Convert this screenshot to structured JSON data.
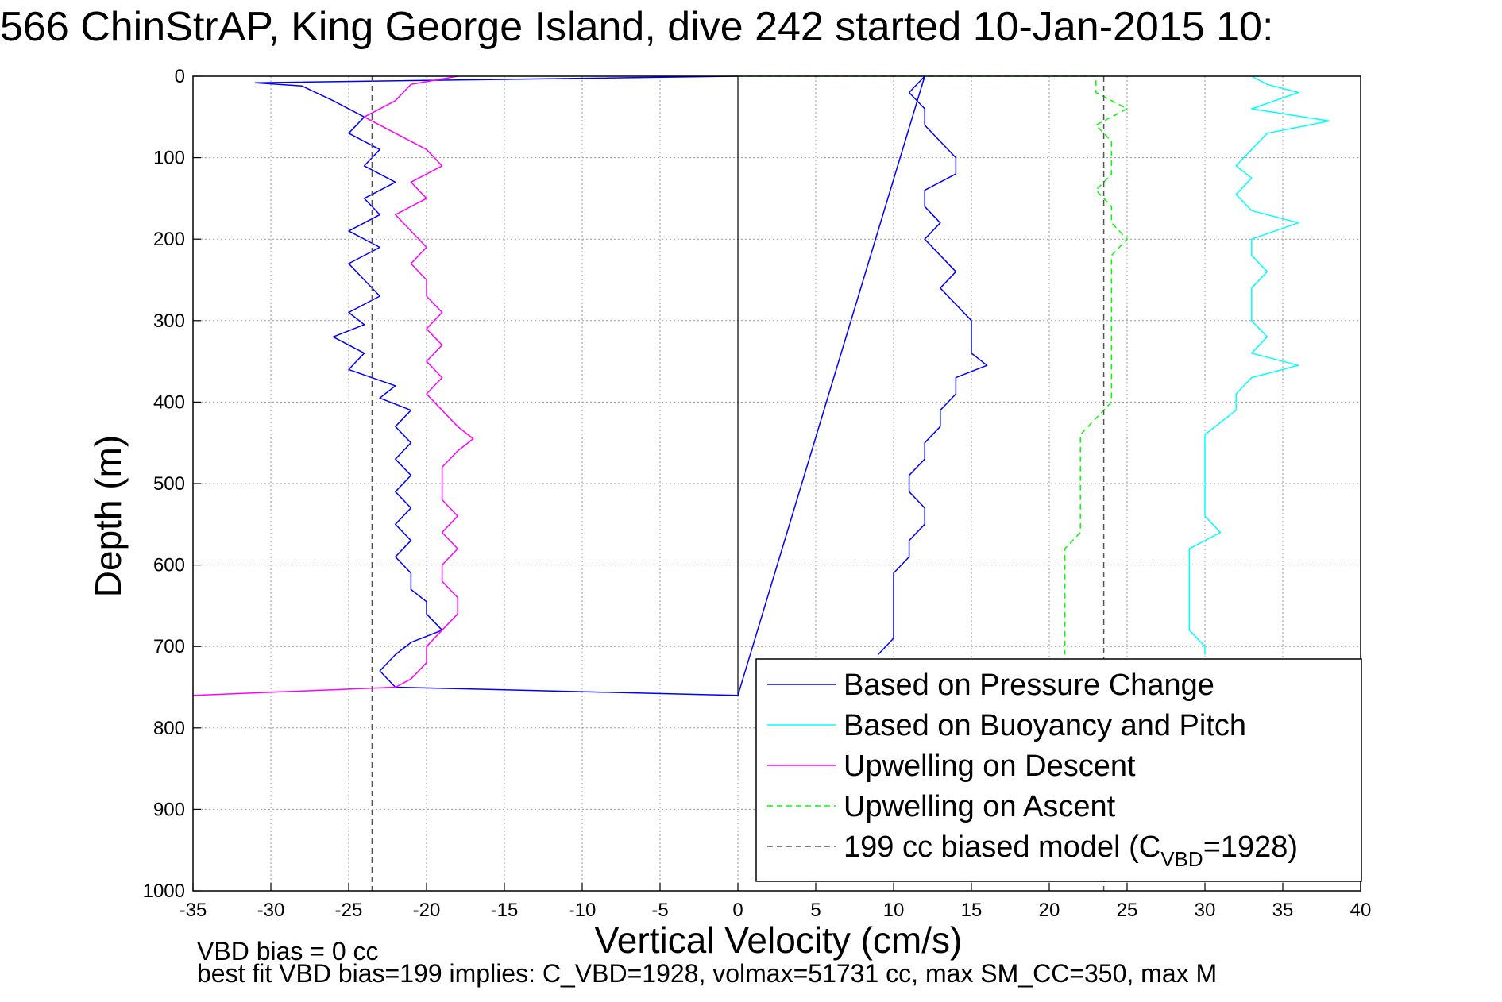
{
  "title": "566 ChinStrAP, King George Island, dive 242 started 10-Jan-2015 10:",
  "notes": {
    "line1": "VBD bias = 0 cc",
    "line2": "best fit VBD bias=199 implies: C_VBD=1928, volmax=51731 cc, max SM_CC=350, max M"
  },
  "chart_data": {
    "type": "line",
    "title": "566 ChinStrAP, King George Island, dive 242 started 10-Jan-2015 10:",
    "xlabel": "Vertical Velocity (cm/s)",
    "ylabel": "Depth (m)",
    "xlim": [
      -35,
      40
    ],
    "ylim": [
      0,
      1000
    ],
    "y_reversed": true,
    "grid": true,
    "legend_location": "bottom-right",
    "x_ticks": [
      -35,
      -30,
      -25,
      -20,
      -15,
      -10,
      -5,
      0,
      5,
      10,
      15,
      20,
      25,
      30,
      35,
      40
    ],
    "y_ticks": [
      0,
      100,
      200,
      300,
      400,
      500,
      600,
      700,
      800,
      900,
      1000
    ],
    "series": [
      {
        "name": "Based on Pressure Change",
        "color": "#0000ff",
        "style": "solid",
        "points": [
          [
            0,
            0
          ],
          [
            -31,
            8
          ],
          [
            -28,
            12
          ],
          [
            -26,
            30
          ],
          [
            -24,
            50
          ],
          [
            -25,
            70
          ],
          [
            -23,
            90
          ],
          [
            -24,
            110
          ],
          [
            -22,
            130
          ],
          [
            -24,
            150
          ],
          [
            -23,
            170
          ],
          [
            -25,
            190
          ],
          [
            -23,
            210
          ],
          [
            -25,
            230
          ],
          [
            -24,
            250
          ],
          [
            -23,
            270
          ],
          [
            -25,
            290
          ],
          [
            -24,
            305
          ],
          [
            -26,
            320
          ],
          [
            -24,
            340
          ],
          [
            -25,
            360
          ],
          [
            -22,
            380
          ],
          [
            -23,
            395
          ],
          [
            -21,
            410
          ],
          [
            -22,
            430
          ],
          [
            -21,
            450
          ],
          [
            -22,
            470
          ],
          [
            -21,
            490
          ],
          [
            -22,
            510
          ],
          [
            -21,
            530
          ],
          [
            -22,
            550
          ],
          [
            -21,
            570
          ],
          [
            -22,
            590
          ],
          [
            -21,
            610
          ],
          [
            -21,
            630
          ],
          [
            -20,
            645
          ],
          [
            -20,
            660
          ],
          [
            -19,
            680
          ],
          [
            -21,
            695
          ],
          [
            -22,
            710
          ],
          [
            -23,
            730
          ],
          [
            -22,
            750
          ],
          [
            0,
            760
          ],
          [
            12,
            0
          ],
          [
            11,
            20
          ],
          [
            12,
            40
          ],
          [
            12,
            60
          ],
          [
            13,
            80
          ],
          [
            14,
            100
          ],
          [
            14,
            120
          ],
          [
            12,
            140
          ],
          [
            12,
            160
          ],
          [
            13,
            180
          ],
          [
            12,
            200
          ],
          [
            13,
            220
          ],
          [
            14,
            240
          ],
          [
            13,
            260
          ],
          [
            14,
            280
          ],
          [
            15,
            300
          ],
          [
            15,
            320
          ],
          [
            15,
            340
          ],
          [
            16,
            355
          ],
          [
            14,
            370
          ],
          [
            14,
            390
          ],
          [
            13,
            410
          ],
          [
            13,
            430
          ],
          [
            12,
            450
          ],
          [
            12,
            470
          ],
          [
            11,
            490
          ],
          [
            11,
            510
          ],
          [
            12,
            530
          ],
          [
            12,
            550
          ],
          [
            11,
            570
          ],
          [
            11,
            590
          ],
          [
            10,
            610
          ],
          [
            10,
            630
          ],
          [
            10,
            650
          ],
          [
            10,
            670
          ],
          [
            10,
            690
          ],
          [
            9,
            710
          ]
        ]
      },
      {
        "name": "Based on Buoyancy and Pitch",
        "color": "#00ffff",
        "style": "solid",
        "points": [
          [
            33,
            0
          ],
          [
            34,
            10
          ],
          [
            36,
            20
          ],
          [
            33,
            40
          ],
          [
            38,
            55
          ],
          [
            34,
            70
          ],
          [
            33,
            90
          ],
          [
            32,
            110
          ],
          [
            33,
            125
          ],
          [
            32,
            145
          ],
          [
            33,
            165
          ],
          [
            36,
            180
          ],
          [
            33,
            200
          ],
          [
            33,
            220
          ],
          [
            34,
            240
          ],
          [
            33,
            260
          ],
          [
            33,
            280
          ],
          [
            33,
            300
          ],
          [
            34,
            320
          ],
          [
            33,
            340
          ],
          [
            36,
            355
          ],
          [
            33,
            370
          ],
          [
            32,
            390
          ],
          [
            32,
            410
          ],
          [
            31,
            425
          ],
          [
            30,
            440
          ],
          [
            30,
            460
          ],
          [
            30,
            480
          ],
          [
            30,
            500
          ],
          [
            30,
            520
          ],
          [
            30,
            540
          ],
          [
            31,
            560
          ],
          [
            29,
            580
          ],
          [
            29,
            600
          ],
          [
            29,
            620
          ],
          [
            29,
            640
          ],
          [
            29,
            660
          ],
          [
            29,
            680
          ],
          [
            30,
            700
          ],
          [
            30,
            710
          ]
        ]
      },
      {
        "name": "Upwelling on Descent",
        "color": "#ff00ff",
        "style": "solid",
        "points": [
          [
            -18,
            0
          ],
          [
            -21,
            10
          ],
          [
            -22,
            30
          ],
          [
            -24,
            50
          ],
          [
            -22,
            70
          ],
          [
            -20,
            90
          ],
          [
            -19,
            110
          ],
          [
            -21,
            130
          ],
          [
            -20,
            150
          ],
          [
            -22,
            170
          ],
          [
            -21,
            190
          ],
          [
            -20,
            210
          ],
          [
            -21,
            230
          ],
          [
            -20,
            250
          ],
          [
            -20,
            270
          ],
          [
            -19,
            290
          ],
          [
            -20,
            310
          ],
          [
            -19,
            330
          ],
          [
            -20,
            350
          ],
          [
            -19,
            370
          ],
          [
            -20,
            390
          ],
          [
            -19,
            410
          ],
          [
            -18,
            430
          ],
          [
            -17,
            445
          ],
          [
            -18,
            460
          ],
          [
            -19,
            480
          ],
          [
            -19,
            500
          ],
          [
            -19,
            520
          ],
          [
            -18,
            540
          ],
          [
            -19,
            560
          ],
          [
            -18,
            580
          ],
          [
            -19,
            600
          ],
          [
            -19,
            620
          ],
          [
            -18,
            640
          ],
          [
            -18,
            660
          ],
          [
            -19,
            680
          ],
          [
            -20,
            700
          ],
          [
            -20,
            720
          ],
          [
            -21,
            740
          ],
          [
            -22,
            750
          ],
          [
            -35,
            760
          ]
        ]
      },
      {
        "name": "Upwelling on Ascent",
        "color": "#00ff00",
        "style": "dashed",
        "points": [
          [
            0,
            0
          ],
          [
            23,
            0
          ],
          [
            23,
            20
          ],
          [
            25,
            40
          ],
          [
            23,
            60
          ],
          [
            24,
            80
          ],
          [
            24,
            100
          ],
          [
            24,
            120
          ],
          [
            23,
            140
          ],
          [
            24,
            160
          ],
          [
            24,
            180
          ],
          [
            25,
            200
          ],
          [
            24,
            220
          ],
          [
            24,
            240
          ],
          [
            24,
            260
          ],
          [
            24,
            280
          ],
          [
            24,
            300
          ],
          [
            24,
            320
          ],
          [
            24,
            340
          ],
          [
            24,
            360
          ],
          [
            24,
            380
          ],
          [
            24,
            400
          ],
          [
            23,
            420
          ],
          [
            22,
            440
          ],
          [
            22,
            460
          ],
          [
            22,
            480
          ],
          [
            22,
            500
          ],
          [
            22,
            520
          ],
          [
            22,
            540
          ],
          [
            22,
            560
          ],
          [
            21,
            580
          ],
          [
            21,
            600
          ],
          [
            21,
            620
          ],
          [
            21,
            640
          ],
          [
            21,
            660
          ],
          [
            21,
            680
          ],
          [
            21,
            700
          ],
          [
            21,
            710
          ]
        ]
      },
      {
        "name": "199 cc biased model (C_VBD=1928)",
        "color": "#555555",
        "style": "dashed",
        "points": [
          [
            -23.5,
            0
          ],
          [
            -23.5,
            1000
          ],
          [
            23.5,
            0
          ],
          [
            23.5,
            1000
          ]
        ]
      }
    ],
    "reference_lines": [
      {
        "axis": "x",
        "value": 0,
        "color": "#000000",
        "from_y": 0,
        "to_y": 760
      }
    ]
  },
  "legend": {
    "items": [
      {
        "label": "Based on Pressure Change",
        "color": "#0000ff",
        "dash": "solid"
      },
      {
        "label": "Based on Buoyancy and Pitch",
        "color": "#00ffff",
        "dash": "solid"
      },
      {
        "label": "Upwelling on Descent",
        "color": "#ff00ff",
        "dash": "solid"
      },
      {
        "label": "Upwelling on Ascent",
        "color": "#00ff00",
        "dash": "dashed"
      },
      {
        "label_main": "199 cc biased model (C",
        "label_sub": "VBD",
        "label_end": "=1928)",
        "color": "#555555",
        "dash": "dashed"
      }
    ]
  }
}
